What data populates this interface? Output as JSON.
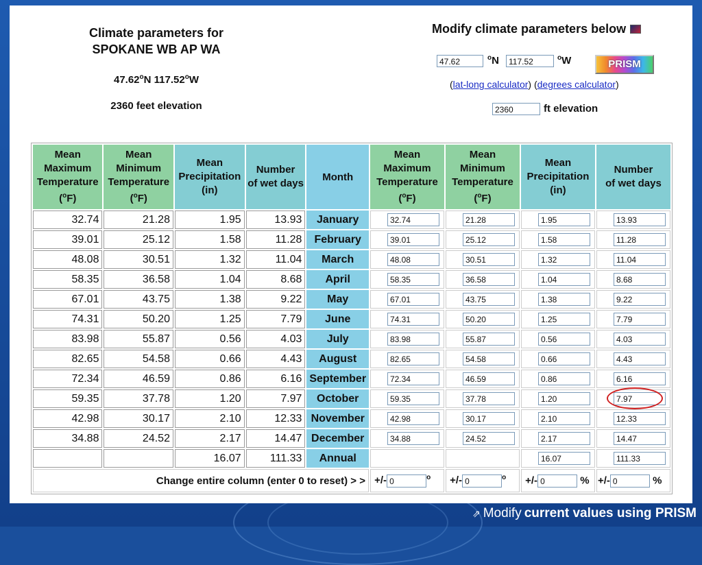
{
  "left": {
    "title_line1": "Climate parameters for",
    "title_line2": "SPOKANE WB AP WA",
    "lat": "47.62",
    "lon": "117.52",
    "elevation_text": "2360 feet elevation"
  },
  "modify": {
    "title": "Modify climate parameters below",
    "lat_value": "47.62",
    "lat_unit": "N",
    "lon_value": "117.52",
    "lon_unit": "W",
    "prism_label": "PRISM",
    "latlong_link": "lat-long calculator",
    "degrees_link": "degrees calculator",
    "elevation_value": "2360",
    "elevation_unit": "ft elevation"
  },
  "table": {
    "headers": {
      "max_temp": [
        "Mean",
        "Maximum",
        "Temperature"
      ],
      "min_temp": [
        "Mean",
        "Minimum",
        "Temperature"
      ],
      "precip": [
        "Mean",
        "Precipitation",
        "(in)"
      ],
      "wet": [
        "Number",
        "of wet days"
      ],
      "month": "Month",
      "unit": "F"
    },
    "rows": [
      {
        "max": "32.74",
        "min": "21.28",
        "pr": "1.95",
        "wet": "13.93",
        "month": "January"
      },
      {
        "max": "39.01",
        "min": "25.12",
        "pr": "1.58",
        "wet": "11.28",
        "month": "February"
      },
      {
        "max": "48.08",
        "min": "30.51",
        "pr": "1.32",
        "wet": "11.04",
        "month": "March"
      },
      {
        "max": "58.35",
        "min": "36.58",
        "pr": "1.04",
        "wet": "8.68",
        "month": "April"
      },
      {
        "max": "67.01",
        "min": "43.75",
        "pr": "1.38",
        "wet": "9.22",
        "month": "May"
      },
      {
        "max": "74.31",
        "min": "50.20",
        "pr": "1.25",
        "wet": "7.79",
        "month": "June"
      },
      {
        "max": "83.98",
        "min": "55.87",
        "pr": "0.56",
        "wet": "4.03",
        "month": "July"
      },
      {
        "max": "82.65",
        "min": "54.58",
        "pr": "0.66",
        "wet": "4.43",
        "month": "August"
      },
      {
        "max": "72.34",
        "min": "46.59",
        "pr": "0.86",
        "wet": "6.16",
        "month": "September"
      },
      {
        "max": "59.35",
        "min": "37.78",
        "pr": "1.20",
        "wet": "7.97",
        "month": "October"
      },
      {
        "max": "42.98",
        "min": "30.17",
        "pr": "2.10",
        "wet": "12.33",
        "month": "November"
      },
      {
        "max": "34.88",
        "min": "24.52",
        "pr": "2.17",
        "wet": "14.47",
        "month": "December"
      }
    ],
    "annual": {
      "pr": "16.07",
      "wet": "111.33",
      "month": "Annual"
    },
    "change_label": "Change entire column (enter 0 to reset)  > >",
    "change_prefix": "+/-",
    "change_value": "0",
    "deg_suffix": "o",
    "pct_suffix": "%"
  },
  "footer": {
    "prefix": "Modify",
    "bold": "current values using PRISM"
  }
}
